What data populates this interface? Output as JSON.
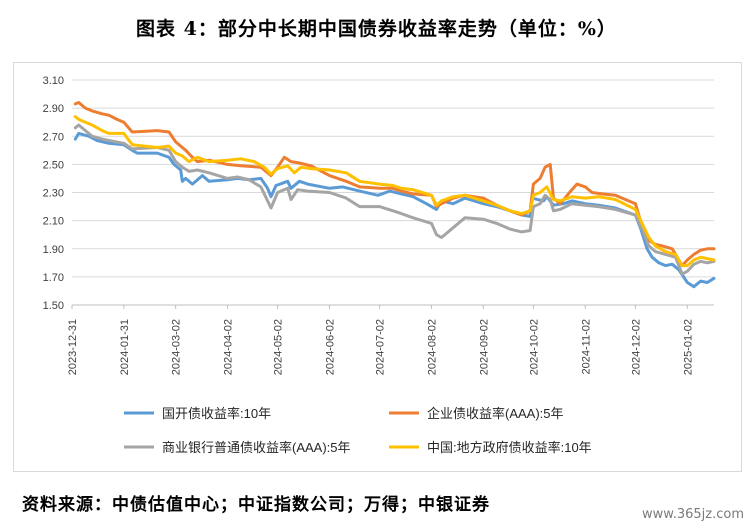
{
  "title": "图表 4：部分中长期中国债券收益率走势（单位：%）",
  "source": "资料来源：中债估值中心；中证指数公司；万得；中银证券",
  "watermark": "www.365jz.com",
  "chart_data": {
    "type": "line",
    "ylim": [
      1.5,
      3.1
    ],
    "y_ticks": [
      "3.10",
      "2.90",
      "2.70",
      "2.50",
      "2.30",
      "2.10",
      "1.90",
      "1.70",
      "1.50"
    ],
    "x_ticks": [
      "2023-12-31",
      "2024-01-31",
      "2024-03-02",
      "2024-04-02",
      "2024-05-02",
      "2024-06-02",
      "2024-07-02",
      "2024-08-02",
      "2024-09-02",
      "2024-10-02",
      "2024-11-02",
      "2024-12-02",
      "2025-01-02"
    ],
    "x_range": [
      "2023-12-31",
      "2025-01-18"
    ],
    "grid": true,
    "legend_position": "bottom",
    "series": [
      {
        "name": "国开债收益率:10年",
        "color": "#5b9bd5",
        "points": [
          [
            "2024-01-02",
            2.68
          ],
          [
            "2024-01-04",
            2.72
          ],
          [
            "2024-01-10",
            2.7
          ],
          [
            "2024-01-15",
            2.67
          ],
          [
            "2024-01-22",
            2.65
          ],
          [
            "2024-01-31",
            2.64
          ],
          [
            "2024-02-05",
            2.6
          ],
          [
            "2024-02-08",
            2.58
          ],
          [
            "2024-02-20",
            2.58
          ],
          [
            "2024-02-27",
            2.55
          ],
          [
            "2024-03-01",
            2.5
          ],
          [
            "2024-03-05",
            2.46
          ],
          [
            "2024-03-06",
            2.38
          ],
          [
            "2024-03-08",
            2.4
          ],
          [
            "2024-03-12",
            2.36
          ],
          [
            "2024-03-18",
            2.42
          ],
          [
            "2024-03-22",
            2.38
          ],
          [
            "2024-04-02",
            2.39
          ],
          [
            "2024-04-08",
            2.4
          ],
          [
            "2024-04-15",
            2.39
          ],
          [
            "2024-04-22",
            2.4
          ],
          [
            "2024-04-26",
            2.33
          ],
          [
            "2024-04-28",
            2.27
          ],
          [
            "2024-05-01",
            2.35
          ],
          [
            "2024-05-08",
            2.38
          ],
          [
            "2024-05-10",
            2.33
          ],
          [
            "2024-05-15",
            2.38
          ],
          [
            "2024-05-20",
            2.36
          ],
          [
            "2024-06-02",
            2.33
          ],
          [
            "2024-06-10",
            2.34
          ],
          [
            "2024-06-20",
            2.31
          ],
          [
            "2024-07-01",
            2.28
          ],
          [
            "2024-07-08",
            2.31
          ],
          [
            "2024-07-15",
            2.29
          ],
          [
            "2024-07-22",
            2.27
          ],
          [
            "2024-07-30",
            2.22
          ],
          [
            "2024-08-05",
            2.18
          ],
          [
            "2024-08-08",
            2.24
          ],
          [
            "2024-08-15",
            2.22
          ],
          [
            "2024-08-22",
            2.26
          ],
          [
            "2024-09-02",
            2.22
          ],
          [
            "2024-09-10",
            2.2
          ],
          [
            "2024-09-18",
            2.17
          ],
          [
            "2024-09-25",
            2.14
          ],
          [
            "2024-09-30",
            2.13
          ],
          [
            "2024-10-01",
            2.26
          ],
          [
            "2024-10-08",
            2.24
          ],
          [
            "2024-10-10",
            2.27
          ],
          [
            "2024-10-14",
            2.21
          ],
          [
            "2024-10-20",
            2.22
          ],
          [
            "2024-10-25",
            2.24
          ],
          [
            "2024-11-02",
            2.22
          ],
          [
            "2024-11-10",
            2.21
          ],
          [
            "2024-11-20",
            2.19
          ],
          [
            "2024-12-02",
            2.14
          ],
          [
            "2024-12-05",
            2.05
          ],
          [
            "2024-12-09",
            1.9
          ],
          [
            "2024-12-12",
            1.84
          ],
          [
            "2024-12-16",
            1.8
          ],
          [
            "2024-12-20",
            1.78
          ],
          [
            "2024-12-24",
            1.79
          ],
          [
            "2024-12-28",
            1.75
          ],
          [
            "2025-01-02",
            1.66
          ],
          [
            "2025-01-06",
            1.63
          ],
          [
            "2025-01-10",
            1.67
          ],
          [
            "2025-01-14",
            1.66
          ],
          [
            "2025-01-18",
            1.69
          ]
        ]
      },
      {
        "name": "企业债收益率(AAA):5年",
        "color": "#ed7d31",
        "points": [
          [
            "2024-01-02",
            2.93
          ],
          [
            "2024-01-04",
            2.94
          ],
          [
            "2024-01-08",
            2.9
          ],
          [
            "2024-01-12",
            2.88
          ],
          [
            "2024-01-18",
            2.86
          ],
          [
            "2024-01-22",
            2.85
          ],
          [
            "2024-01-27",
            2.82
          ],
          [
            "2024-01-31",
            2.8
          ],
          [
            "2024-02-05",
            2.73
          ],
          [
            "2024-02-20",
            2.74
          ],
          [
            "2024-02-27",
            2.73
          ],
          [
            "2024-03-02",
            2.66
          ],
          [
            "2024-03-05",
            2.63
          ],
          [
            "2024-03-08",
            2.6
          ],
          [
            "2024-03-12",
            2.55
          ],
          [
            "2024-03-15",
            2.52
          ],
          [
            "2024-03-22",
            2.53
          ],
          [
            "2024-04-02",
            2.5
          ],
          [
            "2024-04-10",
            2.49
          ],
          [
            "2024-04-22",
            2.48
          ],
          [
            "2024-04-28",
            2.42
          ],
          [
            "2024-05-02",
            2.48
          ],
          [
            "2024-05-06",
            2.55
          ],
          [
            "2024-05-10",
            2.52
          ],
          [
            "2024-05-15",
            2.51
          ],
          [
            "2024-05-22",
            2.49
          ],
          [
            "2024-06-02",
            2.42
          ],
          [
            "2024-06-12",
            2.38
          ],
          [
            "2024-06-20",
            2.34
          ],
          [
            "2024-07-02",
            2.33
          ],
          [
            "2024-07-10",
            2.33
          ],
          [
            "2024-07-15",
            2.31
          ],
          [
            "2024-07-22",
            2.29
          ],
          [
            "2024-08-02",
            2.28
          ],
          [
            "2024-08-05",
            2.2
          ],
          [
            "2024-08-08",
            2.22
          ],
          [
            "2024-08-15",
            2.26
          ],
          [
            "2024-08-22",
            2.28
          ],
          [
            "2024-09-02",
            2.26
          ],
          [
            "2024-09-10",
            2.21
          ],
          [
            "2024-09-18",
            2.17
          ],
          [
            "2024-09-25",
            2.14
          ],
          [
            "2024-09-30",
            2.17
          ],
          [
            "2024-10-02",
            2.36
          ],
          [
            "2024-10-06",
            2.4
          ],
          [
            "2024-10-09",
            2.48
          ],
          [
            "2024-10-12",
            2.5
          ],
          [
            "2024-10-14",
            2.26
          ],
          [
            "2024-10-18",
            2.22
          ],
          [
            "2024-10-25",
            2.32
          ],
          [
            "2024-10-28",
            2.36
          ],
          [
            "2024-11-02",
            2.34
          ],
          [
            "2024-11-06",
            2.3
          ],
          [
            "2024-11-12",
            2.29
          ],
          [
            "2024-11-20",
            2.28
          ],
          [
            "2024-12-02",
            2.22
          ],
          [
            "2024-12-06",
            2.06
          ],
          [
            "2024-12-10",
            1.96
          ],
          [
            "2024-12-14",
            1.93
          ],
          [
            "2024-12-18",
            1.92
          ],
          [
            "2024-12-24",
            1.9
          ],
          [
            "2024-12-30",
            1.78
          ],
          [
            "2025-01-02",
            1.82
          ],
          [
            "2025-01-06",
            1.86
          ],
          [
            "2025-01-10",
            1.89
          ],
          [
            "2025-01-14",
            1.9
          ],
          [
            "2025-01-18",
            1.9
          ]
        ]
      },
      {
        "name": "商业银行普通债收益率(AAA):5年",
        "color": "#a5a5a5",
        "points": [
          [
            "2024-01-02",
            2.76
          ],
          [
            "2024-01-04",
            2.78
          ],
          [
            "2024-01-08",
            2.74
          ],
          [
            "2024-01-12",
            2.7
          ],
          [
            "2024-01-18",
            2.68
          ],
          [
            "2024-01-22",
            2.67
          ],
          [
            "2024-01-31",
            2.65
          ],
          [
            "2024-02-05",
            2.61
          ],
          [
            "2024-02-20",
            2.62
          ],
          [
            "2024-02-27",
            2.6
          ],
          [
            "2024-03-02",
            2.52
          ],
          [
            "2024-03-06",
            2.48
          ],
          [
            "2024-03-10",
            2.45
          ],
          [
            "2024-03-15",
            2.46
          ],
          [
            "2024-03-22",
            2.44
          ],
          [
            "2024-04-02",
            2.4
          ],
          [
            "2024-04-08",
            2.41
          ],
          [
            "2024-04-15",
            2.39
          ],
          [
            "2024-04-22",
            2.34
          ],
          [
            "2024-04-26",
            2.24
          ],
          [
            "2024-04-28",
            2.19
          ],
          [
            "2024-05-02",
            2.3
          ],
          [
            "2024-05-08",
            2.33
          ],
          [
            "2024-05-10",
            2.25
          ],
          [
            "2024-05-14",
            2.32
          ],
          [
            "2024-05-20",
            2.31
          ],
          [
            "2024-06-02",
            2.3
          ],
          [
            "2024-06-12",
            2.26
          ],
          [
            "2024-06-20",
            2.2
          ],
          [
            "2024-07-02",
            2.2
          ],
          [
            "2024-07-10",
            2.17
          ],
          [
            "2024-07-15",
            2.15
          ],
          [
            "2024-07-22",
            2.12
          ],
          [
            "2024-08-02",
            2.08
          ],
          [
            "2024-08-05",
            2.0
          ],
          [
            "2024-08-08",
            1.98
          ],
          [
            "2024-08-15",
            2.05
          ],
          [
            "2024-08-22",
            2.12
          ],
          [
            "2024-09-02",
            2.11
          ],
          [
            "2024-09-10",
            2.08
          ],
          [
            "2024-09-18",
            2.04
          ],
          [
            "2024-09-25",
            2.02
          ],
          [
            "2024-09-30",
            2.03
          ],
          [
            "2024-10-02",
            2.2
          ],
          [
            "2024-10-06",
            2.22
          ],
          [
            "2024-10-09",
            2.28
          ],
          [
            "2024-10-12",
            2.25
          ],
          [
            "2024-10-14",
            2.17
          ],
          [
            "2024-10-18",
            2.18
          ],
          [
            "2024-10-25",
            2.22
          ],
          [
            "2024-11-02",
            2.21
          ],
          [
            "2024-11-10",
            2.2
          ],
          [
            "2024-11-20",
            2.18
          ],
          [
            "2024-12-02",
            2.14
          ],
          [
            "2024-12-06",
            2.04
          ],
          [
            "2024-12-10",
            1.92
          ],
          [
            "2024-12-14",
            1.88
          ],
          [
            "2024-12-20",
            1.86
          ],
          [
            "2024-12-26",
            1.84
          ],
          [
            "2024-12-30",
            1.72
          ],
          [
            "2025-01-02",
            1.74
          ],
          [
            "2025-01-06",
            1.79
          ],
          [
            "2025-01-10",
            1.81
          ],
          [
            "2025-01-14",
            1.8
          ],
          [
            "2025-01-18",
            1.81
          ]
        ]
      },
      {
        "name": "中国:地方政府债收益率:10年",
        "color": "#ffc000",
        "points": [
          [
            "2024-01-02",
            2.84
          ],
          [
            "2024-01-04",
            2.82
          ],
          [
            "2024-01-08",
            2.8
          ],
          [
            "2024-01-12",
            2.78
          ],
          [
            "2024-01-18",
            2.74
          ],
          [
            "2024-01-22",
            2.72
          ],
          [
            "2024-01-31",
            2.72
          ],
          [
            "2024-02-05",
            2.64
          ],
          [
            "2024-02-20",
            2.62
          ],
          [
            "2024-02-27",
            2.63
          ],
          [
            "2024-03-02",
            2.58
          ],
          [
            "2024-03-06",
            2.56
          ],
          [
            "2024-03-10",
            2.52
          ],
          [
            "2024-03-15",
            2.55
          ],
          [
            "2024-03-22",
            2.52
          ],
          [
            "2024-04-02",
            2.53
          ],
          [
            "2024-04-10",
            2.54
          ],
          [
            "2024-04-18",
            2.52
          ],
          [
            "2024-04-24",
            2.48
          ],
          [
            "2024-04-28",
            2.43
          ],
          [
            "2024-05-02",
            2.47
          ],
          [
            "2024-05-08",
            2.49
          ],
          [
            "2024-05-12",
            2.44
          ],
          [
            "2024-05-16",
            2.48
          ],
          [
            "2024-05-22",
            2.47
          ],
          [
            "2024-06-02",
            2.46
          ],
          [
            "2024-06-12",
            2.44
          ],
          [
            "2024-06-20",
            2.38
          ],
          [
            "2024-07-02",
            2.36
          ],
          [
            "2024-07-10",
            2.35
          ],
          [
            "2024-07-15",
            2.33
          ],
          [
            "2024-07-22",
            2.32
          ],
          [
            "2024-08-02",
            2.28
          ],
          [
            "2024-08-05",
            2.21
          ],
          [
            "2024-08-08",
            2.24
          ],
          [
            "2024-08-15",
            2.27
          ],
          [
            "2024-08-22",
            2.28
          ],
          [
            "2024-09-02",
            2.24
          ],
          [
            "2024-09-10",
            2.21
          ],
          [
            "2024-09-18",
            2.17
          ],
          [
            "2024-09-25",
            2.15
          ],
          [
            "2024-09-30",
            2.17
          ],
          [
            "2024-10-02",
            2.28
          ],
          [
            "2024-10-06",
            2.3
          ],
          [
            "2024-10-10",
            2.34
          ],
          [
            "2024-10-14",
            2.25
          ],
          [
            "2024-10-18",
            2.24
          ],
          [
            "2024-10-25",
            2.27
          ],
          [
            "2024-11-02",
            2.26
          ],
          [
            "2024-11-10",
            2.27
          ],
          [
            "2024-11-20",
            2.25
          ],
          [
            "2024-12-02",
            2.18
          ],
          [
            "2024-12-06",
            2.08
          ],
          [
            "2024-12-10",
            1.98
          ],
          [
            "2024-12-14",
            1.92
          ],
          [
            "2024-12-20",
            1.88
          ],
          [
            "2024-12-26",
            1.86
          ],
          [
            "2024-12-30",
            1.78
          ],
          [
            "2025-01-02",
            1.78
          ],
          [
            "2025-01-06",
            1.82
          ],
          [
            "2025-01-10",
            1.84
          ],
          [
            "2025-01-14",
            1.83
          ],
          [
            "2025-01-18",
            1.82
          ]
        ]
      }
    ]
  }
}
